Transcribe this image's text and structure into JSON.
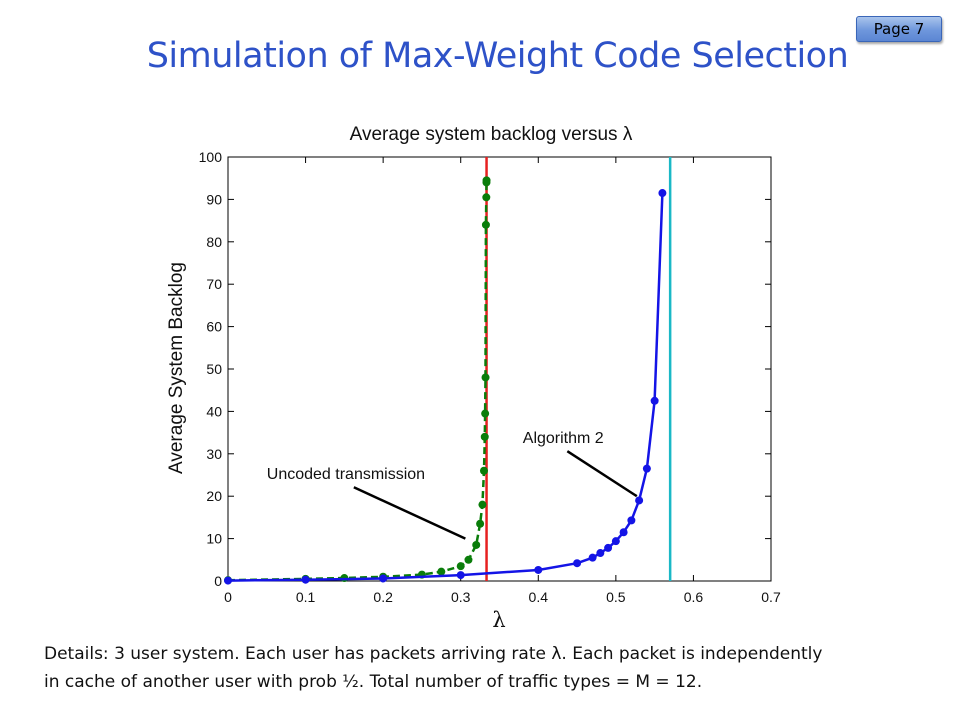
{
  "page": {
    "title": "Simulation of Max-Weight Code Selection",
    "page_label": "Page 7",
    "details_line1": "Details:  3 user system. Each user has packets arriving rate λ.  Each packet is independently",
    "details_line2": "in cache of another user with prob ½.  Total number of traffic types = M = 12."
  },
  "chart_data": {
    "type": "line",
    "title": "Average system backlog versus  λ",
    "xlabel": "λ",
    "ylabel": "Average System Backlog",
    "xlim": [
      0,
      0.7
    ],
    "ylim": [
      0,
      100
    ],
    "xticks": [
      0,
      0.1,
      0.2,
      0.3,
      0.4,
      0.5,
      0.6,
      0.7
    ],
    "xtick_labels": [
      "0",
      "0.1",
      "0.2",
      "0.3",
      "0.4",
      "0.5",
      "0.6",
      "0.7"
    ],
    "yticks": [
      0,
      10,
      20,
      30,
      40,
      50,
      60,
      70,
      80,
      90,
      100
    ],
    "ytick_labels": [
      "0",
      "10",
      "20",
      "30",
      "40",
      "50",
      "60",
      "70",
      "80",
      "90",
      "100"
    ],
    "grid": false,
    "series": [
      {
        "name": "Uncoded transmission",
        "color": "#0a7d0a",
        "dashed": true,
        "x": [
          0,
          0.1,
          0.15,
          0.2,
          0.25,
          0.275,
          0.3,
          0.31,
          0.32,
          0.325,
          0.328,
          0.33,
          0.331,
          0.3315,
          0.332,
          0.3325,
          0.333,
          0.3332,
          0.3333
        ],
        "y": [
          0.2,
          0.5,
          0.7,
          1.0,
          1.5,
          2.2,
          3.5,
          5.0,
          8.5,
          13.5,
          18.0,
          26.0,
          34.0,
          39.5,
          48.0,
          84.0,
          90.5,
          94.0,
          94.5
        ]
      },
      {
        "name": "Algorithm 2",
        "color": "#1414e6",
        "dashed": false,
        "x": [
          0,
          0.1,
          0.2,
          0.3,
          0.4,
          0.45,
          0.47,
          0.48,
          0.49,
          0.5,
          0.51,
          0.52,
          0.53,
          0.54,
          0.55,
          0.56
        ],
        "y": [
          0.1,
          0.3,
          0.6,
          1.4,
          2.6,
          4.2,
          5.5,
          6.6,
          7.8,
          9.4,
          11.5,
          14.3,
          19.0,
          26.5,
          42.5,
          91.5
        ]
      }
    ],
    "vertical_lines": [
      {
        "x": 0.3333,
        "color": "#e62020"
      },
      {
        "x": 0.57,
        "color": "#1ab8c6"
      }
    ],
    "annotations": [
      {
        "text": "Uncoded transmission",
        "x": 0.05,
        "y": 24,
        "target_x": 0.306,
        "target_y": 10
      },
      {
        "text": "Algorithm 2",
        "x": 0.38,
        "y": 32.5,
        "target_x": 0.527,
        "target_y": 20
      }
    ]
  }
}
